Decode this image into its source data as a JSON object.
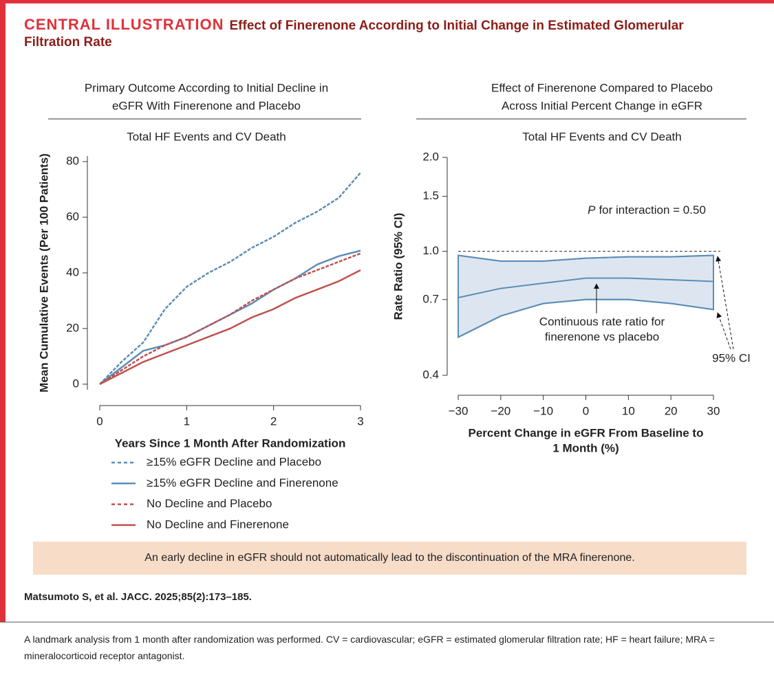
{
  "header": {
    "label": "CENTRAL ILLUSTRATION",
    "title": "Effect of Finerenone According to Initial Change in Estimated Glomerular Filtration Rate"
  },
  "chart_data": [
    {
      "type": "line",
      "title": [
        "Primary Outcome According to Initial Decline in",
        "eGFR With Finerenone and Placebo"
      ],
      "subtitle": "Total HF Events and CV Death",
      "xlabel": "Years Since 1 Month After Randomization",
      "ylabel": "Mean Cumulative Events (Per 100 Patients)",
      "x": [
        0,
        0.25,
        0.5,
        0.75,
        1,
        1.25,
        1.5,
        1.75,
        2,
        2.25,
        2.5,
        2.75,
        3
      ],
      "xlim": [
        0,
        3
      ],
      "xticks": [
        0,
        1,
        2,
        3
      ],
      "ylim": [
        -2,
        82
      ],
      "yticks": [
        0,
        20,
        40,
        60,
        80
      ],
      "series": [
        {
          "name": "≥15% eGFR Decline and Placebo",
          "color": "#5b8db8",
          "style": "dashed",
          "values": [
            0,
            8,
            15,
            27,
            35,
            40,
            44,
            49,
            53,
            58,
            62,
            67,
            76
          ]
        },
        {
          "name": "≥15% eGFR Decline and Finerenone",
          "color": "#5b8db8",
          "style": "solid",
          "values": [
            0,
            6,
            12,
            14,
            17,
            21,
            25,
            29,
            34,
            38,
            43,
            46,
            48
          ]
        },
        {
          "name": "No Decline and Placebo",
          "color": "#c0504d",
          "style": "dashed",
          "values": [
            0,
            5,
            10,
            14,
            17,
            21,
            25,
            30,
            34,
            38,
            41,
            44,
            47
          ]
        },
        {
          "name": "No Decline and Finerenone",
          "color": "#c0504d",
          "style": "solid",
          "values": [
            0,
            4,
            8,
            11,
            14,
            17,
            20,
            24,
            27,
            31,
            34,
            37,
            41
          ]
        }
      ]
    },
    {
      "type": "band",
      "title": [
        "Effect of Finerenone Compared to Placebo",
        "Across Initial Percent Change in eGFR"
      ],
      "subtitle": "Total HF Events and CV Death",
      "xlabel": [
        "Percent Change in eGFR From Baseline to",
        "1 Month (%)"
      ],
      "ylabel": "Rate Ratio (95% CI)",
      "log_y": true,
      "xlim": [
        -30,
        30
      ],
      "ylim": [
        0.4,
        2
      ],
      "xticks": [
        {
          "value": -30,
          "label": "−30"
        },
        {
          "value": -20,
          "label": "−20"
        },
        {
          "value": -10,
          "label": "−10"
        },
        0,
        10,
        20,
        30
      ],
      "yticks": [
        0.4,
        0.7,
        {
          "value": 1,
          "label": "1.0"
        },
        1.5,
        {
          "value": 2,
          "label": "2.0"
        }
      ],
      "reference_line": 1,
      "x": [
        -30,
        -20,
        -10,
        0,
        10,
        20,
        30
      ],
      "estimate": [
        0.71,
        0.76,
        0.79,
        0.82,
        0.82,
        0.81,
        0.8
      ],
      "ci_upper": [
        0.97,
        0.93,
        0.93,
        0.95,
        0.96,
        0.96,
        0.97
      ],
      "ci_lower": [
        0.53,
        0.62,
        0.68,
        0.7,
        0.7,
        0.68,
        0.65
      ],
      "color": "#5b8db8",
      "band_color": "#dde6f0",
      "interaction": {
        "italic": "P",
        "text": "for interaction = 0.50"
      },
      "estimate_label": [
        "Continuous rate ratio for",
        "finerenone vs placebo"
      ],
      "ci_label": "95% CI"
    }
  ],
  "takeaway": "An early decline in eGFR should not automatically lead to the discontinuation of the MRA finerenone.",
  "citation": "Matsumoto S, et al. JACC. 2025;85(2):173–185.",
  "caption": "A landmark analysis from 1 month after randomization was performed. CV = cardiovascular; eGFR = estimated glomerular filtration rate; HF = heart failure; MRA = mineralocorticoid receptor antagonist."
}
